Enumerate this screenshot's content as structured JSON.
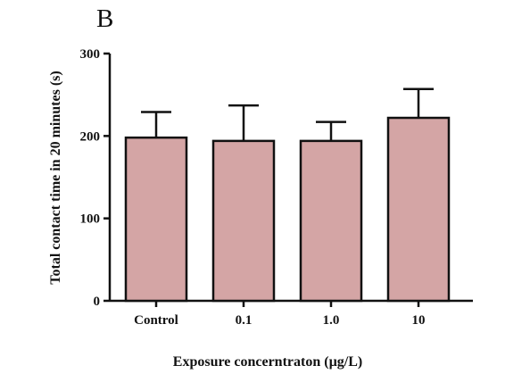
{
  "chart_data": {
    "type": "bar",
    "panel_label": "B",
    "title": "",
    "xlabel": "Exposure concerntraton (µg/L)",
    "ylabel": "Total contact time in 20 minutes (s)",
    "categories": [
      "Control",
      "0.1",
      "1.0",
      "10"
    ],
    "values": [
      198,
      194,
      194,
      222
    ],
    "error_upper": [
      229,
      237,
      217,
      257
    ],
    "ylim": [
      0,
      300
    ],
    "yticks": [
      0,
      100,
      200,
      300
    ],
    "grid": false,
    "legend": "none",
    "colors": {
      "bar_fill": "#d4a5a5",
      "bar_stroke": "#111111",
      "axis": "#111111"
    }
  }
}
